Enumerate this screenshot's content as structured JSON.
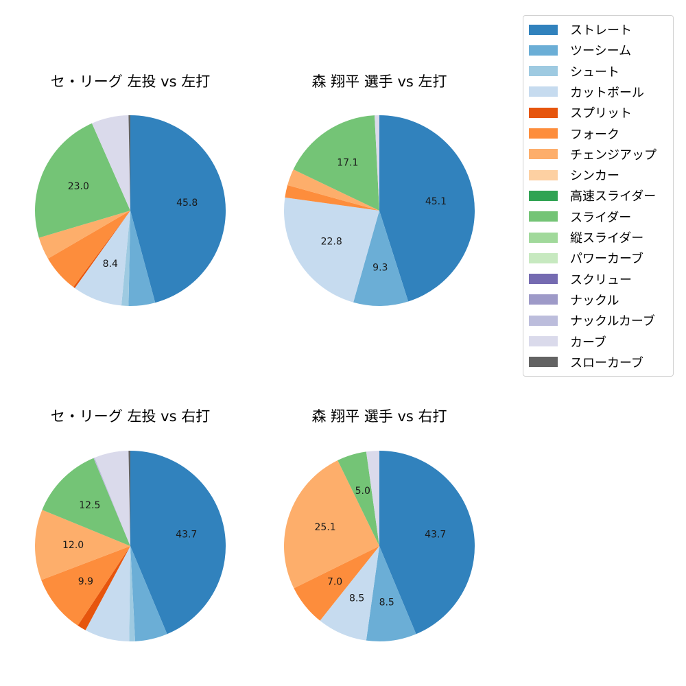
{
  "legend": {
    "items": [
      {
        "label": "ストレート",
        "color": "#3182bd"
      },
      {
        "label": "ツーシーム",
        "color": "#6baed6"
      },
      {
        "label": "シュート",
        "color": "#9ecae1"
      },
      {
        "label": "カットボール",
        "color": "#c6dbef"
      },
      {
        "label": "スプリット",
        "color": "#e6550d"
      },
      {
        "label": "フォーク",
        "color": "#fd8d3c"
      },
      {
        "label": "チェンジアップ",
        "color": "#fdae6b"
      },
      {
        "label": "シンカー",
        "color": "#fdd0a2"
      },
      {
        "label": "高速スライダー",
        "color": "#31a354"
      },
      {
        "label": "スライダー",
        "color": "#74c476"
      },
      {
        "label": "縦スライダー",
        "color": "#a1d99b"
      },
      {
        "label": "パワーカーブ",
        "color": "#c7e9c0"
      },
      {
        "label": "スクリュー",
        "color": "#756bb1"
      },
      {
        "label": "ナックル",
        "color": "#9e9ac8"
      },
      {
        "label": "ナックルカーブ",
        "color": "#bcbddc"
      },
      {
        "label": "カーブ",
        "color": "#dadaeb"
      },
      {
        "label": "スローカーブ",
        "color": "#636363"
      }
    ]
  },
  "chart_data": [
    {
      "type": "pie",
      "title": "セ・リーグ 左投 vs 左打",
      "categories": [
        "ストレート",
        "ツーシーム",
        "シュート",
        "カットボール",
        "スプリット",
        "フォーク",
        "チェンジアップ",
        "スライダー",
        "カーブ",
        "スローカーブ"
      ],
      "values": [
        45.8,
        4.5,
        1.2,
        8.4,
        0.3,
        6.4,
        3.8,
        23.0,
        6.3,
        0.3
      ],
      "labels_shown": [
        "45.8",
        "",
        "",
        "8.4",
        "",
        "",
        "",
        "23.0",
        "",
        ""
      ]
    },
    {
      "type": "pie",
      "title": "森 翔平 選手 vs 左打",
      "categories": [
        "ストレート",
        "ツーシーム",
        "カットボール",
        "フォーク",
        "チェンジアップ",
        "スライダー",
        "カーブ"
      ],
      "values": [
        45.1,
        9.3,
        22.8,
        2.1,
        2.8,
        17.1,
        0.8
      ],
      "labels_shown": [
        "45.1",
        "9.3",
        "22.8",
        "",
        "",
        "17.1",
        ""
      ]
    },
    {
      "type": "pie",
      "title": "セ・リーグ 左投 vs 右打",
      "categories": [
        "ストレート",
        "ツーシーム",
        "シュート",
        "カットボール",
        "スプリット",
        "フォーク",
        "チェンジアップ",
        "スライダー",
        "ナックルカーブ",
        "カーブ",
        "スローカーブ"
      ],
      "values": [
        43.7,
        5.5,
        1.0,
        7.6,
        1.5,
        9.9,
        12.0,
        12.5,
        0.2,
        5.8,
        0.3
      ],
      "labels_shown": [
        "43.7",
        "",
        "",
        "",
        "",
        "9.9",
        "12.0",
        "12.5",
        "",
        "",
        ""
      ]
    },
    {
      "type": "pie",
      "title": "森 翔平 選手 vs 右打",
      "categories": [
        "ストレート",
        "ツーシーム",
        "カットボール",
        "フォーク",
        "チェンジアップ",
        "スライダー",
        "カーブ"
      ],
      "values": [
        43.7,
        8.5,
        8.5,
        7.0,
        25.1,
        5.0,
        2.2
      ],
      "labels_shown": [
        "43.7",
        "8.5",
        "8.5",
        "7.0",
        "25.1",
        "5.0",
        ""
      ]
    }
  ]
}
